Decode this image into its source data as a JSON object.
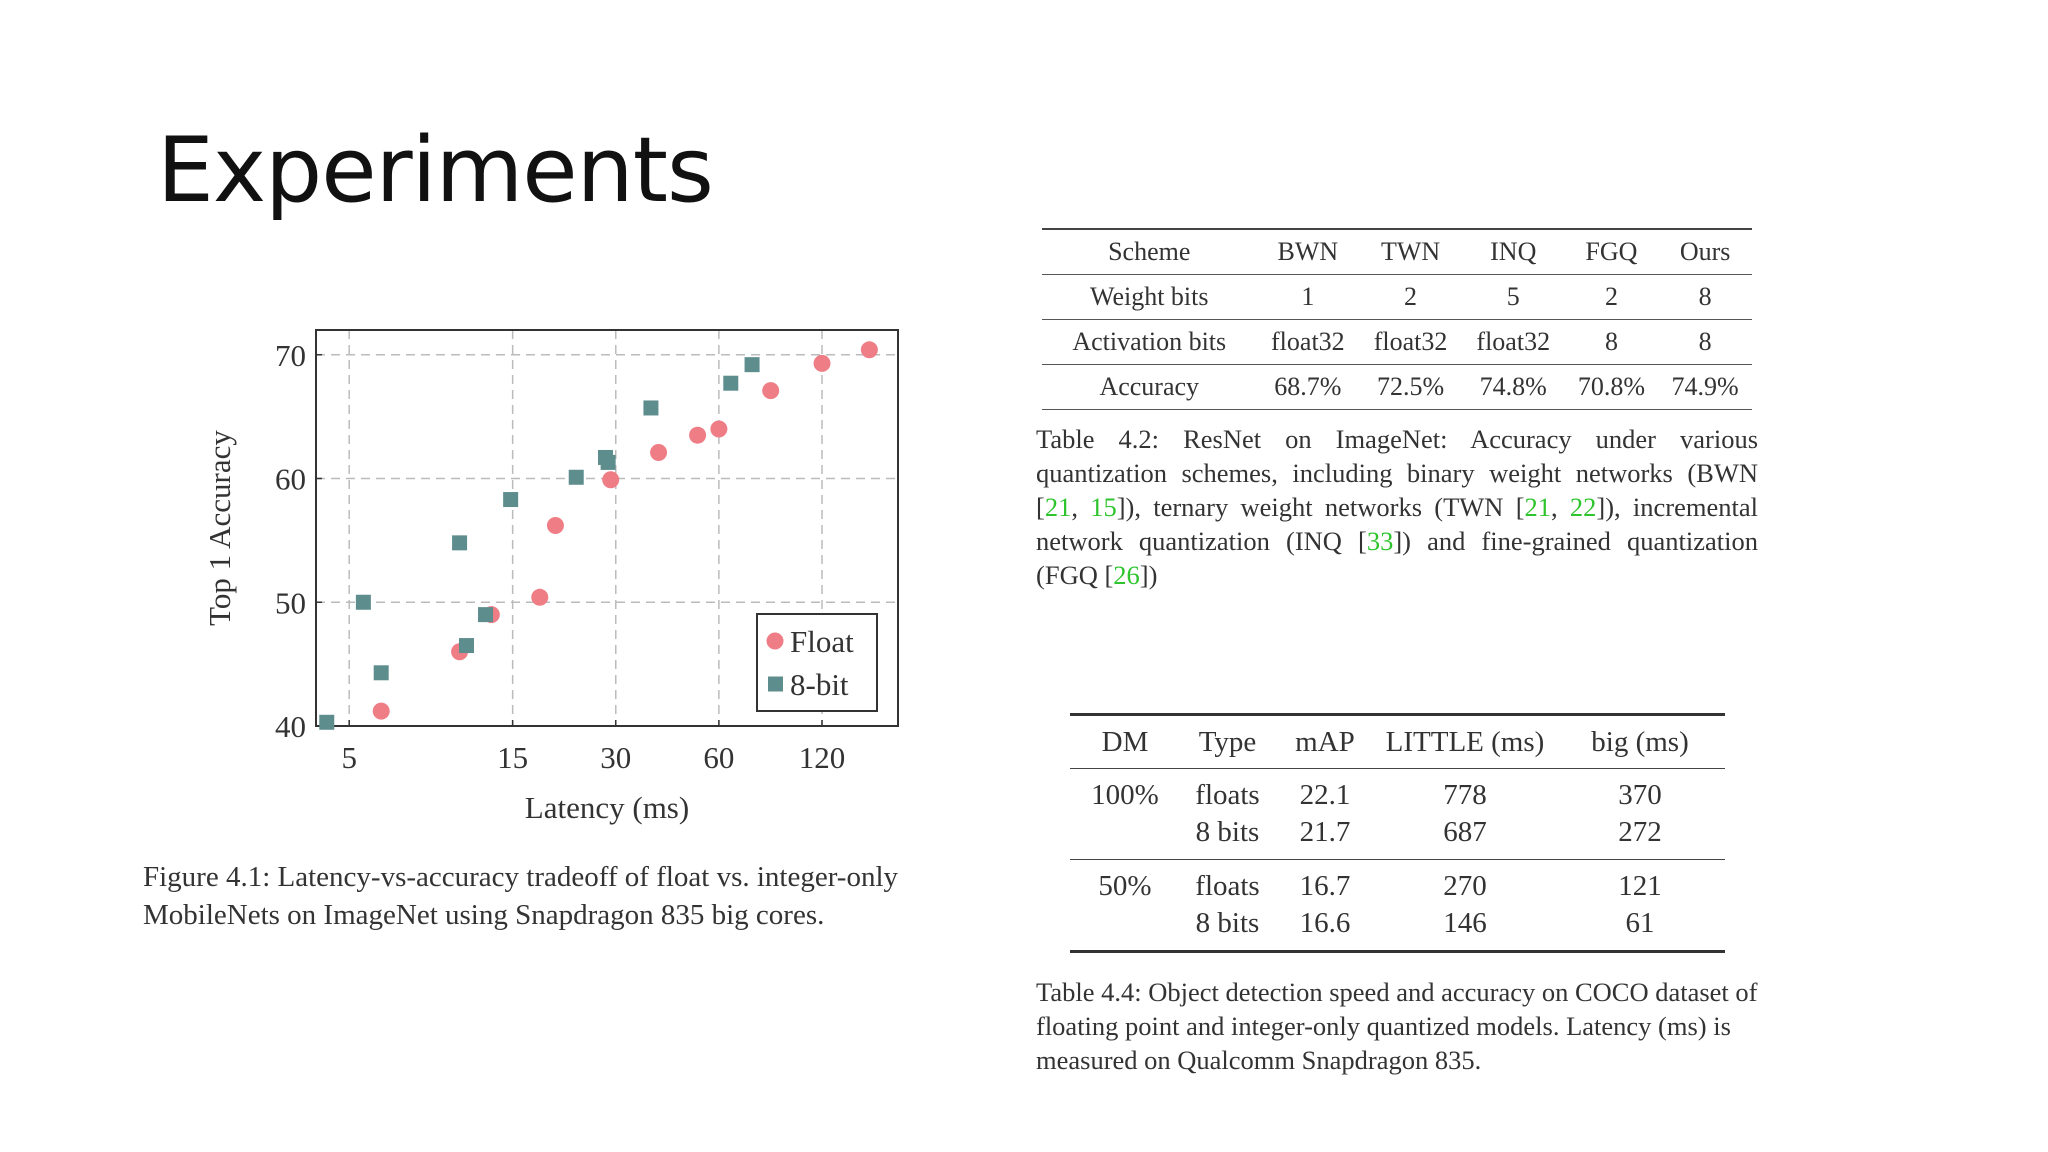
{
  "slide": {
    "title": "Experiments"
  },
  "figure": {
    "caption_label": "Figure 4.1:",
    "caption_text": "Latency-vs-accuracy tradeoff of float vs. integer-only MobileNets on ImageNet using Snapdragon 835 big cores."
  },
  "chart_data": {
    "type": "scatter",
    "xlabel": "Latency (ms)",
    "ylabel": "Top 1 Accuracy",
    "xscale": "log",
    "xlim": [
      4,
      200
    ],
    "ylim": [
      40,
      72
    ],
    "xticks": [
      5,
      15,
      30,
      60,
      120
    ],
    "yticks": [
      40,
      50,
      60,
      70
    ],
    "grid": true,
    "legend_position": "bottom-right",
    "series": [
      {
        "name": "Float",
        "color": "#ef7d86",
        "marker": "circle",
        "x": [
          6.2,
          10.5,
          13,
          18,
          20,
          29,
          40,
          52,
          60,
          85,
          120,
          165
        ],
        "y": [
          41.2,
          46,
          49,
          50.4,
          56.2,
          59.9,
          62.1,
          63.5,
          64,
          67.1,
          69.3,
          70.4
        ]
      },
      {
        "name": "8-bit",
        "color": "#5e8d8e",
        "marker": "square",
        "x": [
          4.3,
          5.5,
          6.2,
          10.5,
          11,
          12.5,
          14.8,
          23,
          28,
          28.5,
          38,
          65,
          75
        ],
        "y": [
          40.3,
          50,
          44.3,
          54.8,
          46.5,
          49,
          58.3,
          60.1,
          61.7,
          61.3,
          65.7,
          67.7,
          69.2
        ]
      }
    ]
  },
  "table_42": {
    "headers": [
      "Scheme",
      "BWN",
      "TWN",
      "INQ",
      "FGQ",
      "Ours"
    ],
    "rows": [
      [
        "Weight bits",
        "1",
        "2",
        "5",
        "2",
        "8"
      ],
      [
        "Activation bits",
        "float32",
        "float32",
        "float32",
        "8",
        "8"
      ],
      [
        "Accuracy",
        "68.7%",
        "72.5%",
        "74.8%",
        "70.8%",
        "74.9%"
      ]
    ],
    "caption": {
      "label": "Table 4.2:",
      "t1": "ResNet on ImageNet: Accuracy under various quantization schemes, including binary weight networks (BWN [",
      "r1": "21",
      "t2": ", ",
      "r2": "15",
      "t3": "]), ternary weight networks (TWN [",
      "r3": "21",
      "t4": ", ",
      "r4": "22",
      "t5": "]), incremental network quantization (INQ [",
      "r5": "33",
      "t6": "]) and fine-grained quantization (FGQ [",
      "r6": "26",
      "t7": "])"
    }
  },
  "table_44": {
    "headers": [
      "DM",
      "Type",
      "mAP",
      "LITTLE (ms)",
      "big (ms)"
    ],
    "groups": [
      {
        "dm": "100%",
        "rows": [
          [
            "floats",
            "22.1",
            "778",
            "370"
          ],
          [
            "8 bits",
            "21.7",
            "687",
            "272"
          ]
        ]
      },
      {
        "dm": "50%",
        "rows": [
          [
            "floats",
            "16.7",
            "270",
            "121"
          ],
          [
            "8 bits",
            "16.6",
            "146",
            "61"
          ]
        ]
      }
    ],
    "caption": {
      "label": "Table 4.4:",
      "text": "Object detection speed and accuracy on COCO dataset of floating point and integer-only quantized models. Latency (ms) is measured on Qualcomm Snapdragon 835."
    }
  }
}
